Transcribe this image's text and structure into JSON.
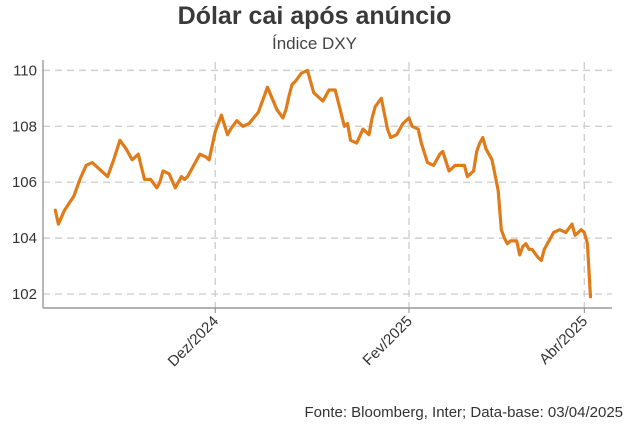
{
  "chart_data": {
    "type": "line",
    "title": "Dólar cai após anúncio",
    "subtitle": "Índice DXY",
    "source": "Fonte: Bloomberg, Inter; Data-base: 03/04/2025",
    "ylim": [
      101.5,
      110.3
    ],
    "yticks": [
      102,
      104,
      106,
      108,
      110
    ],
    "grid": true,
    "x_tick_labels": [
      {
        "label": "Dez/2024",
        "x": "2024-12-02"
      },
      {
        "label": "Fev/2025",
        "x": "2025-02-03"
      },
      {
        "label": "Abr/2025",
        "x": "2025-04-01"
      }
    ],
    "color": "#e07b1a",
    "series": [
      {
        "x": [
          "2024-10-11",
          "2024-10-12",
          "2024-10-14",
          "2024-10-17",
          "2024-10-19",
          "2024-10-21",
          "2024-10-23",
          "2024-10-25",
          "2024-10-28",
          "2024-10-30",
          "2024-11-01",
          "2024-11-03",
          "2024-11-05",
          "2024-11-07",
          "2024-11-09",
          "2024-11-11",
          "2024-11-13",
          "2024-11-14",
          "2024-11-15",
          "2024-11-17",
          "2024-11-19",
          "2024-11-21",
          "2024-11-22",
          "2024-11-23",
          "2024-11-25",
          "2024-11-27",
          "2024-11-29",
          "2024-11-30",
          "2024-12-02",
          "2024-12-04",
          "2024-12-06",
          "2024-12-07",
          "2024-12-09",
          "2024-12-11",
          "2024-12-13",
          "2024-12-16",
          "2024-12-19",
          "2024-12-22",
          "2024-12-24",
          "2024-12-25",
          "2024-12-26",
          "2024-12-27",
          "2024-12-28",
          "2024-12-30",
          "2025-01-01",
          "2025-01-03",
          "2025-01-06",
          "2025-01-08",
          "2025-01-10",
          "2025-01-13",
          "2025-01-14",
          "2025-01-15",
          "2025-01-17",
          "2025-01-19",
          "2025-01-21",
          "2025-01-22",
          "2025-01-23",
          "2025-01-25",
          "2025-01-27",
          "2025-01-28",
          "2025-01-30",
          "2025-02-01",
          "2025-02-03",
          "2025-02-04",
          "2025-02-06",
          "2025-02-07",
          "2025-02-09",
          "2025-02-11",
          "2025-02-13",
          "2025-02-14",
          "2025-02-16",
          "2025-02-18",
          "2025-02-21",
          "2025-02-22",
          "2025-02-24",
          "2025-02-25",
          "2025-02-26",
          "2025-02-27",
          "2025-02-28",
          "2025-03-02",
          "2025-03-04",
          "2025-03-05",
          "2025-03-06",
          "2025-03-07",
          "2025-03-08",
          "2025-03-10",
          "2025-03-11",
          "2025-03-12",
          "2025-03-13",
          "2025-03-14",
          "2025-03-15",
          "2025-03-17",
          "2025-03-18",
          "2025-03-19",
          "2025-03-21",
          "2025-03-22",
          "2025-03-24",
          "2025-03-26",
          "2025-03-28",
          "2025-03-29",
          "2025-03-31",
          "2025-04-01",
          "2025-04-02",
          "2025-04-03"
        ],
        "y": [
          105.0,
          104.5,
          105.0,
          105.5,
          106.1,
          106.6,
          106.7,
          106.5,
          106.2,
          106.8,
          107.5,
          107.2,
          106.8,
          107.0,
          106.1,
          106.1,
          105.8,
          106.0,
          106.4,
          106.3,
          105.8,
          106.2,
          106.1,
          106.2,
          106.6,
          107.0,
          106.9,
          106.8,
          107.8,
          108.4,
          107.7,
          107.9,
          108.2,
          108.0,
          108.1,
          108.5,
          109.4,
          108.6,
          108.3,
          108.6,
          109.1,
          109.5,
          109.6,
          109.9,
          110.0,
          109.2,
          108.9,
          109.3,
          109.3,
          108.0,
          108.1,
          107.5,
          107.4,
          107.9,
          107.7,
          108.3,
          108.7,
          109.0,
          107.9,
          107.6,
          107.7,
          108.1,
          108.3,
          108.0,
          107.9,
          107.4,
          106.7,
          106.6,
          107.0,
          107.1,
          106.4,
          106.6,
          106.6,
          106.2,
          106.4,
          107.1,
          107.4,
          107.6,
          107.2,
          106.8,
          105.7,
          104.3,
          104.0,
          103.8,
          103.9,
          103.9,
          103.4,
          103.7,
          103.8,
          103.6,
          103.6,
          103.3,
          103.2,
          103.6,
          104.0,
          104.2,
          104.3,
          104.2,
          104.5,
          104.1,
          104.3,
          104.2,
          103.8,
          101.9
        ]
      }
    ]
  }
}
